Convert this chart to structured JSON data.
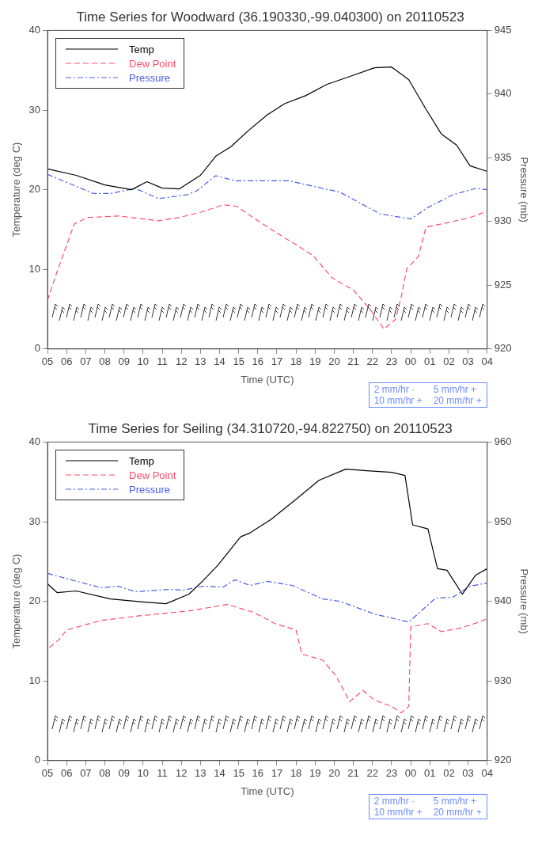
{
  "chart_data": [
    {
      "type": "line",
      "title": "Time Series for Woodward (36.190330,-99.040300) on 20110523",
      "xlabel": "Time (UTC)",
      "ylabel": "Temperature (deg C)",
      "y2label": "Pressure (mb)",
      "legend": "top left",
      "grid": false,
      "xlim": [
        "2011-05-23T05:00",
        "2011-05-24T04:00"
      ],
      "xticks": [
        {
          "value": "2011-05-23T05:00",
          "label": "05"
        },
        {
          "value": "2011-05-23T06:00",
          "label": "06"
        },
        {
          "value": "2011-05-23T07:00",
          "label": "07"
        },
        {
          "value": "2011-05-23T08:00",
          "label": "08"
        },
        {
          "value": "2011-05-23T09:00",
          "label": "09"
        },
        {
          "value": "2011-05-23T10:00",
          "label": "10"
        },
        {
          "value": "2011-05-23T11:00",
          "label": "11"
        },
        {
          "value": "2011-05-23T12:00",
          "label": "12"
        },
        {
          "value": "2011-05-23T13:00",
          "label": "13"
        },
        {
          "value": "2011-05-23T14:00",
          "label": "14"
        },
        {
          "value": "2011-05-23T15:00",
          "label": "15"
        },
        {
          "value": "2011-05-23T16:00",
          "label": "16"
        },
        {
          "value": "2011-05-23T17:00",
          "label": "17"
        },
        {
          "value": "2011-05-23T18:00",
          "label": "18"
        },
        {
          "value": "2011-05-23T19:00",
          "label": "19"
        },
        {
          "value": "2011-05-23T20:00",
          "label": "20"
        },
        {
          "value": "2011-05-23T21:00",
          "label": "21"
        },
        {
          "value": "2011-05-23T22:00",
          "label": "22"
        },
        {
          "value": "2011-05-23T23:00",
          "label": "23"
        },
        {
          "value": "2011-05-24T00:00",
          "label": "00"
        },
        {
          "value": "2011-05-24T01:00",
          "label": "01"
        },
        {
          "value": "2011-05-24T02:00",
          "label": "02"
        },
        {
          "value": "2011-05-24T03:00",
          "label": "03"
        },
        {
          "value": "2011-05-24T04:00",
          "label": "04"
        }
      ],
      "ylim": [
        0,
        40
      ],
      "yticks": [
        0,
        10,
        20,
        30,
        40
      ],
      "y2lim": [
        920,
        945
      ],
      "y2ticks": [
        920,
        925,
        930,
        935,
        940,
        945
      ],
      "annotations": [
        "2 mm/hr ·",
        "5 mm/hr +",
        "10 mm/hr +",
        "20 mm/hr +"
      ],
      "series": [
        {
          "name": "Temp",
          "color": "#000000",
          "line_style": "solid",
          "x": [
            "2011-05-23T05:00",
            "2011-05-23T06:30",
            "2011-05-23T08:00",
            "2011-05-23T09:24",
            "2011-05-23T10:12",
            "2011-05-23T11:00",
            "2011-05-23T11:54",
            "2011-05-23T13:00",
            "2011-05-23T13:48",
            "2011-05-23T14:36",
            "2011-05-23T15:30",
            "2011-05-23T16:30",
            "2011-05-23T17:24",
            "2011-05-23T18:30",
            "2011-05-23T19:36",
            "2011-05-23T20:48",
            "2011-05-23T22:06",
            "2011-05-23T23:00",
            "2011-05-23T23:54",
            "2011-05-24T00:48",
            "2011-05-24T01:36",
            "2011-05-24T02:24",
            "2011-05-24T03:06",
            "2011-05-24T04:00"
          ],
          "values": [
            22.6,
            21.8,
            20.6,
            20,
            21,
            20.2,
            20.1,
            21.8,
            24.2,
            25.4,
            27.4,
            29.4,
            30.8,
            31.8,
            33.2,
            34.2,
            35.3,
            35.4,
            33.8,
            30.1,
            27,
            25.6,
            23,
            22.3
          ]
        },
        {
          "name": "Dew Point",
          "color": "#ff4d6a",
          "line_style": "dashed",
          "x": [
            "2011-05-23T05:00",
            "2011-05-23T05:30",
            "2011-05-23T06:24",
            "2011-05-23T07:06",
            "2011-05-23T08:42",
            "2011-05-23T10:48",
            "2011-05-23T11:54",
            "2011-05-23T13:12",
            "2011-05-23T14:12",
            "2011-05-23T14:54",
            "2011-05-23T16:00",
            "2011-05-23T17:18",
            "2011-05-23T18:00",
            "2011-05-23T18:54",
            "2011-05-23T19:54",
            "2011-05-23T21:00",
            "2011-05-23T21:54",
            "2011-05-23T22:36",
            "2011-05-23T23:12",
            "2011-05-23T23:30",
            "2011-05-23T23:48",
            "2011-05-24T00:24",
            "2011-05-24T00:48",
            "2011-05-24T02:00",
            "2011-05-24T03:06",
            "2011-05-24T04:00"
          ],
          "values": [
            6.1,
            9.7,
            15.7,
            16.5,
            16.7,
            16.1,
            16.5,
            17.3,
            18.1,
            17.9,
            16.1,
            14.1,
            13.1,
            11.7,
            8.9,
            7.4,
            4.9,
            2.5,
            3.7,
            6.5,
            10.1,
            11.6,
            15.3,
            15.9,
            16.5,
            17.3
          ]
        },
        {
          "name": "Pressure",
          "color": "#4a5ce8",
          "line_style": "dotted",
          "axis": "y2",
          "x": [
            "2011-05-23T05:00",
            "2011-05-23T07:24",
            "2011-05-23T08:18",
            "2011-05-23T09:36",
            "2011-05-23T10:48",
            "2011-05-23T12:18",
            "2011-05-23T12:48",
            "2011-05-23T13:48",
            "2011-05-23T14:48",
            "2011-05-23T17:36",
            "2011-05-23T19:24",
            "2011-05-23T20:18",
            "2011-05-23T22:24",
            "2011-05-24T00:00",
            "2011-05-24T00:54",
            "2011-05-24T02:12",
            "2011-05-24T03:24",
            "2011-05-24T04:00"
          ],
          "values": [
            933.7,
            932.2,
            932.2,
            932.6,
            931.8,
            932.1,
            932.4,
            933.6,
            933.2,
            933.2,
            932.6,
            932.3,
            930.6,
            930.2,
            931.1,
            932.1,
            932.6,
            932.5
          ]
        }
      ]
    },
    {
      "type": "line",
      "title": "Time Series for Seiling (34.310720,-94.822750) on 20110523",
      "xlabel": "Time (UTC)",
      "ylabel": "Temperature (deg C)",
      "y2label": "Pressure (mb)",
      "legend": "top left",
      "grid": false,
      "xlim": [
        "2011-05-23T05:00",
        "2011-05-24T04:00"
      ],
      "xticks": [
        {
          "value": "2011-05-23T05:00",
          "label": "05"
        },
        {
          "value": "2011-05-23T06:00",
          "label": "06"
        },
        {
          "value": "2011-05-23T07:00",
          "label": "07"
        },
        {
          "value": "2011-05-23T08:00",
          "label": "08"
        },
        {
          "value": "2011-05-23T09:00",
          "label": "09"
        },
        {
          "value": "2011-05-23T10:00",
          "label": "10"
        },
        {
          "value": "2011-05-23T11:00",
          "label": "11"
        },
        {
          "value": "2011-05-23T12:00",
          "label": "12"
        },
        {
          "value": "2011-05-23T13:00",
          "label": "13"
        },
        {
          "value": "2011-05-23T14:00",
          "label": "14"
        },
        {
          "value": "2011-05-23T15:00",
          "label": "15"
        },
        {
          "value": "2011-05-23T16:00",
          "label": "16"
        },
        {
          "value": "2011-05-23T17:00",
          "label": "17"
        },
        {
          "value": "2011-05-23T18:00",
          "label": "18"
        },
        {
          "value": "2011-05-23T19:00",
          "label": "19"
        },
        {
          "value": "2011-05-23T20:00",
          "label": "20"
        },
        {
          "value": "2011-05-23T21:00",
          "label": "21"
        },
        {
          "value": "2011-05-23T22:00",
          "label": "22"
        },
        {
          "value": "2011-05-23T23:00",
          "label": "23"
        },
        {
          "value": "2011-05-24T00:00",
          "label": "00"
        },
        {
          "value": "2011-05-24T01:00",
          "label": "01"
        },
        {
          "value": "2011-05-24T02:00",
          "label": "02"
        },
        {
          "value": "2011-05-24T03:00",
          "label": "03"
        },
        {
          "value": "2011-05-24T04:00",
          "label": "04"
        }
      ],
      "ylim": [
        0,
        40
      ],
      "yticks": [
        0,
        10,
        20,
        30,
        40
      ],
      "y2lim": [
        920,
        960
      ],
      "y2ticks": [
        920,
        930,
        940,
        950,
        960
      ],
      "annotations": [
        "2 mm/hr ·",
        "5 mm/hr +",
        "10 mm/hr +",
        "20 mm/hr +"
      ],
      "series": [
        {
          "name": "Temp",
          "color": "#000000",
          "line_style": "solid",
          "x": [
            "2011-05-23T05:00",
            "2011-05-23T05:30",
            "2011-05-23T06:30",
            "2011-05-23T08:18",
            "2011-05-23T10:06",
            "2011-05-23T11:12",
            "2011-05-23T12:24",
            "2011-05-23T13:06",
            "2011-05-23T13:54",
            "2011-05-23T15:06",
            "2011-05-23T15:36",
            "2011-05-23T16:42",
            "2011-05-23T18:00",
            "2011-05-23T19:12",
            "2011-05-23T20:36",
            "2011-05-23T21:42",
            "2011-05-23T23:00",
            "2011-05-23T23:42",
            "2011-05-24T00:06",
            "2011-05-24T00:54",
            "2011-05-24T01:24",
            "2011-05-24T01:54",
            "2011-05-24T02:42",
            "2011-05-24T03:24",
            "2011-05-24T04:00"
          ],
          "values": [
            22.2,
            21.1,
            21.3,
            20.3,
            19.9,
            19.7,
            20.9,
            22.5,
            24.5,
            28.1,
            28.6,
            30.3,
            32.8,
            35.2,
            36.6,
            36.4,
            36.2,
            35.8,
            29.6,
            29.1,
            24.1,
            23.9,
            20.9,
            23.3,
            24.1
          ]
        },
        {
          "name": "Dew Point",
          "color": "#ff4d6a",
          "line_style": "dashed",
          "x": [
            "2011-05-23T05:06",
            "2011-05-23T05:36",
            "2011-05-23T06:00",
            "2011-05-23T07:48",
            "2011-05-23T09:54",
            "2011-05-23T12:24",
            "2011-05-23T14:24",
            "2011-05-23T15:48",
            "2011-05-23T16:54",
            "2011-05-23T18:00",
            "2011-05-23T18:18",
            "2011-05-23T19:24",
            "2011-05-23T20:06",
            "2011-05-23T20:48",
            "2011-05-23T21:30",
            "2011-05-23T22:06",
            "2011-05-23T23:00",
            "2011-05-23T23:30",
            "2011-05-23T23:54",
            "2011-05-24T00:00",
            "2011-05-24T00:54",
            "2011-05-24T01:36",
            "2011-05-24T02:30",
            "2011-05-24T03:06",
            "2011-05-24T04:00"
          ],
          "values": [
            14.2,
            15.2,
            16.4,
            17.6,
            18.2,
            18.8,
            19.6,
            18.6,
            17.2,
            16.4,
            13.4,
            12.6,
            10.6,
            7.4,
            8.8,
            7.6,
            6.8,
            6,
            6.8,
            16.8,
            17.2,
            16.2,
            16.6,
            17,
            17.8
          ]
        },
        {
          "name": "Pressure",
          "color": "#4a5ce8",
          "line_style": "dotted",
          "axis": "y2",
          "x": [
            "2011-05-23T05:00",
            "2011-05-23T07:48",
            "2011-05-23T08:42",
            "2011-05-23T09:36",
            "2011-05-23T11:24",
            "2011-05-23T12:06",
            "2011-05-23T13:06",
            "2011-05-23T14:12",
            "2011-05-23T14:48",
            "2011-05-23T15:36",
            "2011-05-23T16:30",
            "2011-05-23T17:48",
            "2011-05-23T19:24",
            "2011-05-23T20:18",
            "2011-05-23T22:06",
            "2011-05-23T23:54",
            "2011-05-24T01:18",
            "2011-05-24T02:12",
            "2011-05-24T03:06",
            "2011-05-24T04:00"
          ],
          "values": [
            943.5,
            941.7,
            941.9,
            941.2,
            941.5,
            941.4,
            941.9,
            941.8,
            942.7,
            942,
            942.5,
            942,
            940.3,
            940,
            938.4,
            937.4,
            940.4,
            940.5,
            941.9,
            942.3
          ]
        }
      ]
    }
  ]
}
